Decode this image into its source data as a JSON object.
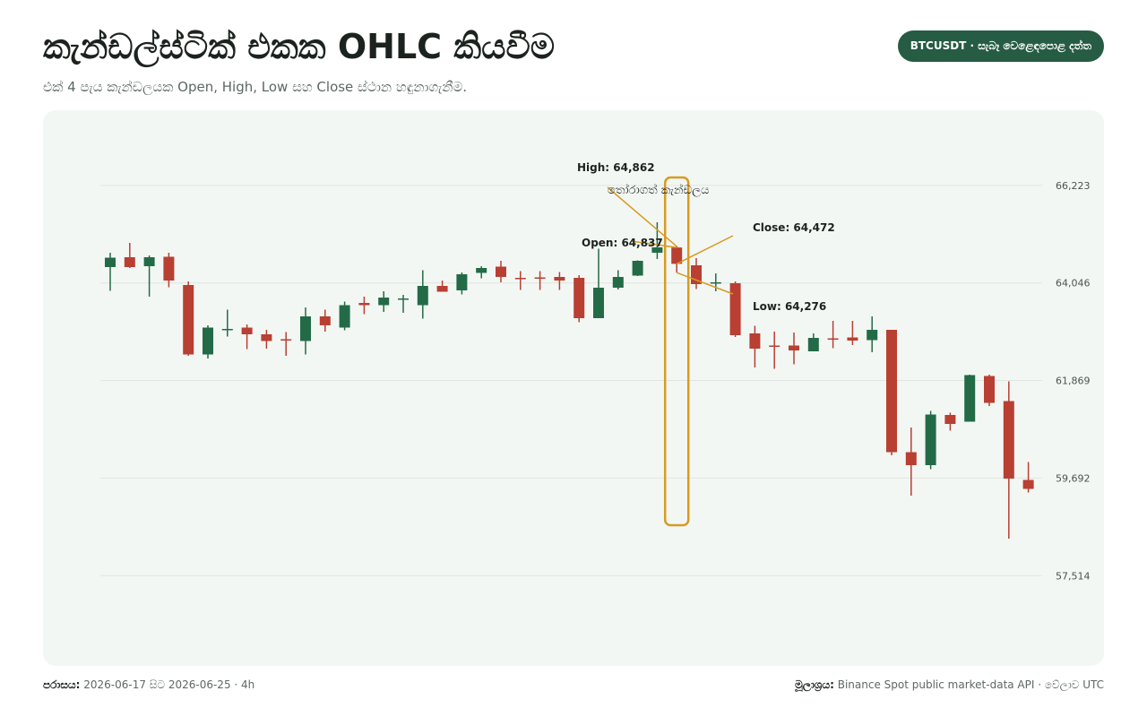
{
  "header": {
    "title": "කැන්ඩල්ස්ටික් එකක OHLC කියවීම",
    "subtitle": "එක් 4 පැය කැන්ඩලයක Open, High, Low සහ Close ස්ථාන හඳුනාගැනීම.",
    "badge": "BTCUSDT · සැබෑ වෙළෙඳපොළ දත්ත"
  },
  "footer": {
    "range_label": "පරාසය:",
    "range_value": "2026-06-17 සිට 2026-06-25 · 4h",
    "source_label": "මූලාශ්‍රය:",
    "source_value": "Binance Spot public market-data API · වේලාව UTC"
  },
  "colors": {
    "up": "#236b47",
    "down": "#b83f32",
    "accent": "#d99a22"
  },
  "chart_data": {
    "type": "candlestick",
    "interval": "4h",
    "ylim": [
      55500,
      67900
    ],
    "yticks": [
      {
        "value": 66223,
        "label": "66,223"
      },
      {
        "value": 64046,
        "label": "64,046"
      },
      {
        "value": 61869,
        "label": "61,869"
      },
      {
        "value": 59692,
        "label": "59,692"
      },
      {
        "value": 57514,
        "label": "57,514"
      }
    ],
    "grid": true,
    "highlight_index": 29,
    "highlight_label": "තෝරාගත් කැන්ඩලය",
    "annotations": {
      "high": "High: 64,862",
      "open": "Open: 64,837",
      "close": "Close: 64,472",
      "low": "Low: 64,276"
    },
    "candles": [
      {
        "o": 64400,
        "h": 64720,
        "l": 63870,
        "c": 64610
      },
      {
        "o": 64620,
        "h": 64940,
        "l": 64380,
        "c": 64400
      },
      {
        "o": 64420,
        "h": 64660,
        "l": 63740,
        "c": 64620
      },
      {
        "o": 64630,
        "h": 64720,
        "l": 63950,
        "c": 64100
      },
      {
        "o": 64000,
        "h": 64080,
        "l": 62420,
        "c": 62450
      },
      {
        "o": 62450,
        "h": 63100,
        "l": 62360,
        "c": 63050
      },
      {
        "o": 63020,
        "h": 63450,
        "l": 62850,
        "c": 63020
      },
      {
        "o": 63050,
        "h": 63120,
        "l": 62570,
        "c": 62900
      },
      {
        "o": 62900,
        "h": 63000,
        "l": 62580,
        "c": 62750
      },
      {
        "o": 62790,
        "h": 62950,
        "l": 62420,
        "c": 62780
      },
      {
        "o": 62750,
        "h": 63500,
        "l": 62450,
        "c": 63300
      },
      {
        "o": 63300,
        "h": 63450,
        "l": 62960,
        "c": 63100
      },
      {
        "o": 63050,
        "h": 63630,
        "l": 62990,
        "c": 63550
      },
      {
        "o": 63600,
        "h": 63740,
        "l": 63350,
        "c": 63550
      },
      {
        "o": 63550,
        "h": 63860,
        "l": 63400,
        "c": 63720
      },
      {
        "o": 63680,
        "h": 63780,
        "l": 63380,
        "c": 63700
      },
      {
        "o": 63550,
        "h": 64330,
        "l": 63250,
        "c": 63980
      },
      {
        "o": 63980,
        "h": 64100,
        "l": 63850,
        "c": 63850
      },
      {
        "o": 63880,
        "h": 64280,
        "l": 63790,
        "c": 64240
      },
      {
        "o": 64270,
        "h": 64420,
        "l": 64150,
        "c": 64380
      },
      {
        "o": 64410,
        "h": 64540,
        "l": 64060,
        "c": 64180
      },
      {
        "o": 64160,
        "h": 64310,
        "l": 63890,
        "c": 64150
      },
      {
        "o": 64170,
        "h": 64310,
        "l": 63890,
        "c": 64160
      },
      {
        "o": 64180,
        "h": 64290,
        "l": 63890,
        "c": 64100
      },
      {
        "o": 64160,
        "h": 64220,
        "l": 63170,
        "c": 63260
      },
      {
        "o": 63260,
        "h": 64810,
        "l": 63260,
        "c": 63940
      },
      {
        "o": 63940,
        "h": 64330,
        "l": 63900,
        "c": 64180
      },
      {
        "o": 64210,
        "h": 64550,
        "l": 64200,
        "c": 64540
      },
      {
        "o": 64720,
        "h": 65400,
        "l": 64580,
        "c": 64840
      },
      {
        "o": 64837,
        "h": 64862,
        "l": 64276,
        "c": 64472
      },
      {
        "o": 64440,
        "h": 64600,
        "l": 63910,
        "c": 64020
      },
      {
        "o": 64040,
        "h": 64260,
        "l": 63860,
        "c": 64060
      },
      {
        "o": 64040,
        "h": 64080,
        "l": 62840,
        "c": 62880
      },
      {
        "o": 62920,
        "h": 63090,
        "l": 62160,
        "c": 62580
      },
      {
        "o": 62650,
        "h": 62960,
        "l": 62130,
        "c": 62640
      },
      {
        "o": 62650,
        "h": 62940,
        "l": 62230,
        "c": 62540
      },
      {
        "o": 62520,
        "h": 62920,
        "l": 62520,
        "c": 62820
      },
      {
        "o": 62810,
        "h": 63200,
        "l": 62590,
        "c": 62800
      },
      {
        "o": 62830,
        "h": 63200,
        "l": 62660,
        "c": 62760
      },
      {
        "o": 62770,
        "h": 63300,
        "l": 62500,
        "c": 63000
      },
      {
        "o": 63000,
        "h": 63000,
        "l": 60200,
        "c": 60270
      },
      {
        "o": 60270,
        "h": 60820,
        "l": 59300,
        "c": 59980
      },
      {
        "o": 59980,
        "h": 61190,
        "l": 59890,
        "c": 61110
      },
      {
        "o": 61100,
        "h": 61150,
        "l": 60750,
        "c": 60900
      },
      {
        "o": 60950,
        "h": 62000,
        "l": 60950,
        "c": 61990
      },
      {
        "o": 61970,
        "h": 62000,
        "l": 61300,
        "c": 61370
      },
      {
        "o": 61410,
        "h": 61850,
        "l": 58340,
        "c": 59680
      },
      {
        "o": 59650,
        "h": 60050,
        "l": 59370,
        "c": 59450
      }
    ]
  }
}
